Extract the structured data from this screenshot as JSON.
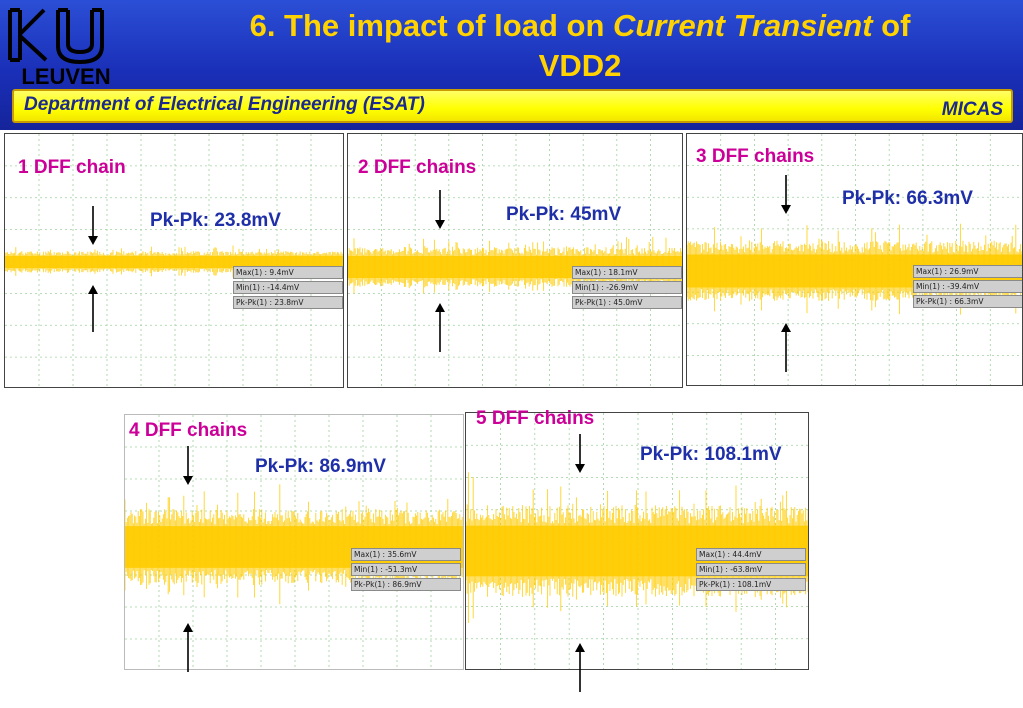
{
  "header": {
    "logo_text": "LEUVEN",
    "logo_letters": "KU",
    "title_prefix": "6. The impact of load on ",
    "title_emphasis": "Current Transient",
    "title_suffix": " of",
    "title_line2": "VDD2",
    "department": "Department of Electrical Engineering (ESAT)",
    "group": "MICAS"
  },
  "colors": {
    "header_blue": "#1a2fb8",
    "title_yellow": "#ffd200",
    "waveform": "#ffcc00",
    "chain_label": "#cc0099",
    "pk_label": "#1f2fa8"
  },
  "panels": [
    {
      "chain_label": "1 DFF chain",
      "pk_label": "Pk-Pk: 23.8mV",
      "max": "Max(1) : 9.4mV",
      "min": "Min(1) : -14.4mV",
      "pkpk": "Pk-Pk(1) : 23.8mV"
    },
    {
      "chain_label": "2 DFF chains",
      "pk_label": "Pk-Pk: 45mV",
      "max": "Max(1) : 18.1mV",
      "min": "Min(1) : -26.9mV",
      "pkpk": "Pk-Pk(1) : 45.0mV"
    },
    {
      "chain_label": "3 DFF chains",
      "pk_label": "Pk-Pk: 66.3mV",
      "max": "Max(1) : 26.9mV",
      "min": "Min(1) : -39.4mV",
      "pkpk": "Pk-Pk(1) : 66.3mV"
    },
    {
      "chain_label": "4 DFF chains",
      "pk_label": "Pk-Pk: 86.9mV",
      "max": "Max(1) : 35.6mV",
      "min": "Min(1) : -51.3mV",
      "pkpk": "Pk-Pk(1) : 86.9mV"
    },
    {
      "chain_label": "5 DFF chains",
      "pk_label": "Pk-Pk: 108.1mV",
      "max": "Max(1) : 44.4mV",
      "min": "Min(1) : -63.8mV",
      "pkpk": "Pk-Pk(1) : 108.1mV"
    }
  ]
}
